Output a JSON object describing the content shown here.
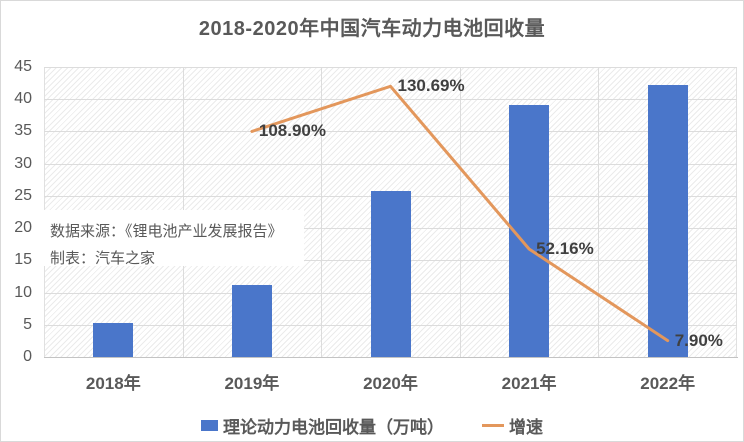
{
  "title": "2018-2020年中国汽车动力电池回收量",
  "source_box": {
    "line1": "数据来源：《锂电池产业发展报告》",
    "line2": "制表：汽车之家"
  },
  "legend": [
    {
      "label": "理论动力电池回收量（万吨）",
      "swatch": "bar-square"
    },
    {
      "label": "增速",
      "swatch": "line-dash"
    }
  ],
  "colors": {
    "bar": "#4A76CA",
    "line": "#E3975C",
    "text": "#595959",
    "grid": "#dcdcdc",
    "data_label": "#404040"
  },
  "chart_data": {
    "type": "bar+line combo",
    "title": "2018-2020年中国汽车动力电池回收量",
    "categories": [
      "2018年",
      "2019年",
      "2020年",
      "2021年",
      "2022年"
    ],
    "series": [
      {
        "name": "理论动力电池回收量（万吨）",
        "type": "bar",
        "axis": "left",
        "values": [
          5.3,
          11.1,
          25.7,
          39.1,
          42.2
        ]
      },
      {
        "name": "增速",
        "type": "line",
        "axis": "secondary-hidden",
        "values": [
          null,
          108.9,
          130.69,
          52.16,
          7.9
        ],
        "point_labels": [
          "",
          "108.90%",
          "130.69%",
          "52.16%",
          "7.90%"
        ]
      }
    ],
    "left_axis": {
      "min": 0,
      "max": 45,
      "step": 5,
      "ticks": [
        "0",
        "5",
        "10",
        "15",
        "20",
        "25",
        "30",
        "35",
        "40",
        "45"
      ]
    },
    "secondary_axis": {
      "min": 0,
      "max": 140,
      "visible": false
    },
    "grid": true,
    "plot_background": "diagonal-hatch",
    "legend_position": "bottom"
  }
}
